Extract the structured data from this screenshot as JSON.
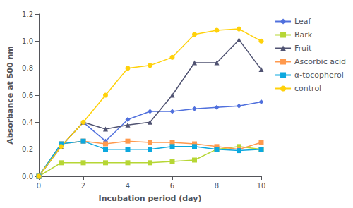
{
  "chart_data": {
    "type": "line",
    "xlabel": "Incubation period (day)",
    "ylabel": "Absorbance at 500 nm",
    "x": [
      0,
      1,
      2,
      3,
      4,
      5,
      6,
      7,
      8,
      9,
      10
    ],
    "series": [
      {
        "name": "Leaf",
        "marker": "diamond",
        "values": [
          0.0,
          0.22,
          0.4,
          0.26,
          0.42,
          0.48,
          0.48,
          0.5,
          0.51,
          0.52,
          0.55
        ]
      },
      {
        "name": "Bark",
        "marker": "square",
        "values": [
          0.0,
          0.1,
          0.1,
          0.1,
          0.1,
          0.1,
          0.11,
          0.12,
          0.2,
          0.22,
          0.2
        ]
      },
      {
        "name": "Fruit",
        "marker": "triangle",
        "values": [
          0.0,
          0.22,
          0.4,
          0.35,
          0.38,
          0.4,
          0.6,
          0.84,
          0.84,
          1.01,
          0.79
        ]
      },
      {
        "name": "Ascorbic acid",
        "marker": "square",
        "values": [
          0.0,
          0.24,
          0.26,
          0.24,
          0.26,
          0.25,
          0.25,
          0.24,
          0.22,
          0.2,
          0.25
        ]
      },
      {
        "name": "α-tocopherol",
        "marker": "square",
        "values": [
          0.0,
          0.24,
          0.26,
          0.2,
          0.2,
          0.2,
          0.22,
          0.22,
          0.2,
          0.19,
          0.2
        ]
      },
      {
        "name": "control",
        "marker": "circle",
        "values": [
          0.0,
          0.22,
          0.4,
          0.6,
          0.8,
          0.82,
          0.88,
          1.05,
          1.08,
          1.09,
          1.0
        ]
      }
    ],
    "xlim": [
      0,
      10
    ],
    "ylim": [
      0,
      1.2
    ],
    "xticks": [
      0,
      2,
      4,
      6,
      8,
      10
    ],
    "yticks": [
      {
        "value": 0,
        "label": "0.0"
      },
      0.2,
      0.4,
      0.6,
      0.8,
      {
        "value": 1.0,
        "label": "1.0"
      },
      1.2
    ],
    "grid": false,
    "legend": "right"
  }
}
